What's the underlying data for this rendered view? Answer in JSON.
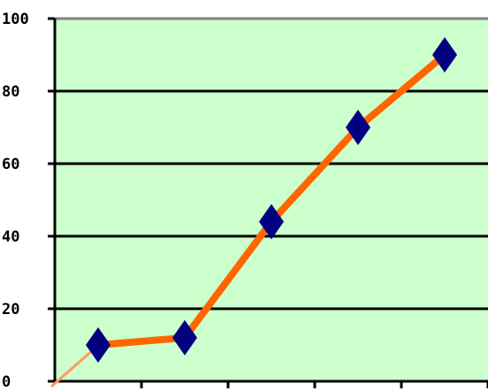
{
  "chart_data": {
    "type": "line",
    "title": "",
    "xlabel": "",
    "ylabel": "",
    "ylim": [
      0,
      100
    ],
    "y_ticks": [
      0,
      20,
      40,
      60,
      80,
      100
    ],
    "y_tick_labels": [
      "0",
      "20",
      "40",
      "60",
      "80",
      "100"
    ],
    "x_tick_count": 5,
    "grid": true,
    "leader": {
      "from": [
        0,
        0
      ],
      "to": [
        1,
        10
      ]
    },
    "series": [
      {
        "x": [
          1,
          2,
          3,
          4,
          5
        ],
        "values": [
          10,
          12,
          44,
          70,
          90
        ]
      }
    ]
  },
  "colors": {
    "plot_background": "#ccffcc",
    "line": "#ff6600",
    "leader_line": "#ff9966",
    "marker": "#000080",
    "gridline": "#000000",
    "top_gridline": "#808080",
    "axis": "#000000"
  }
}
